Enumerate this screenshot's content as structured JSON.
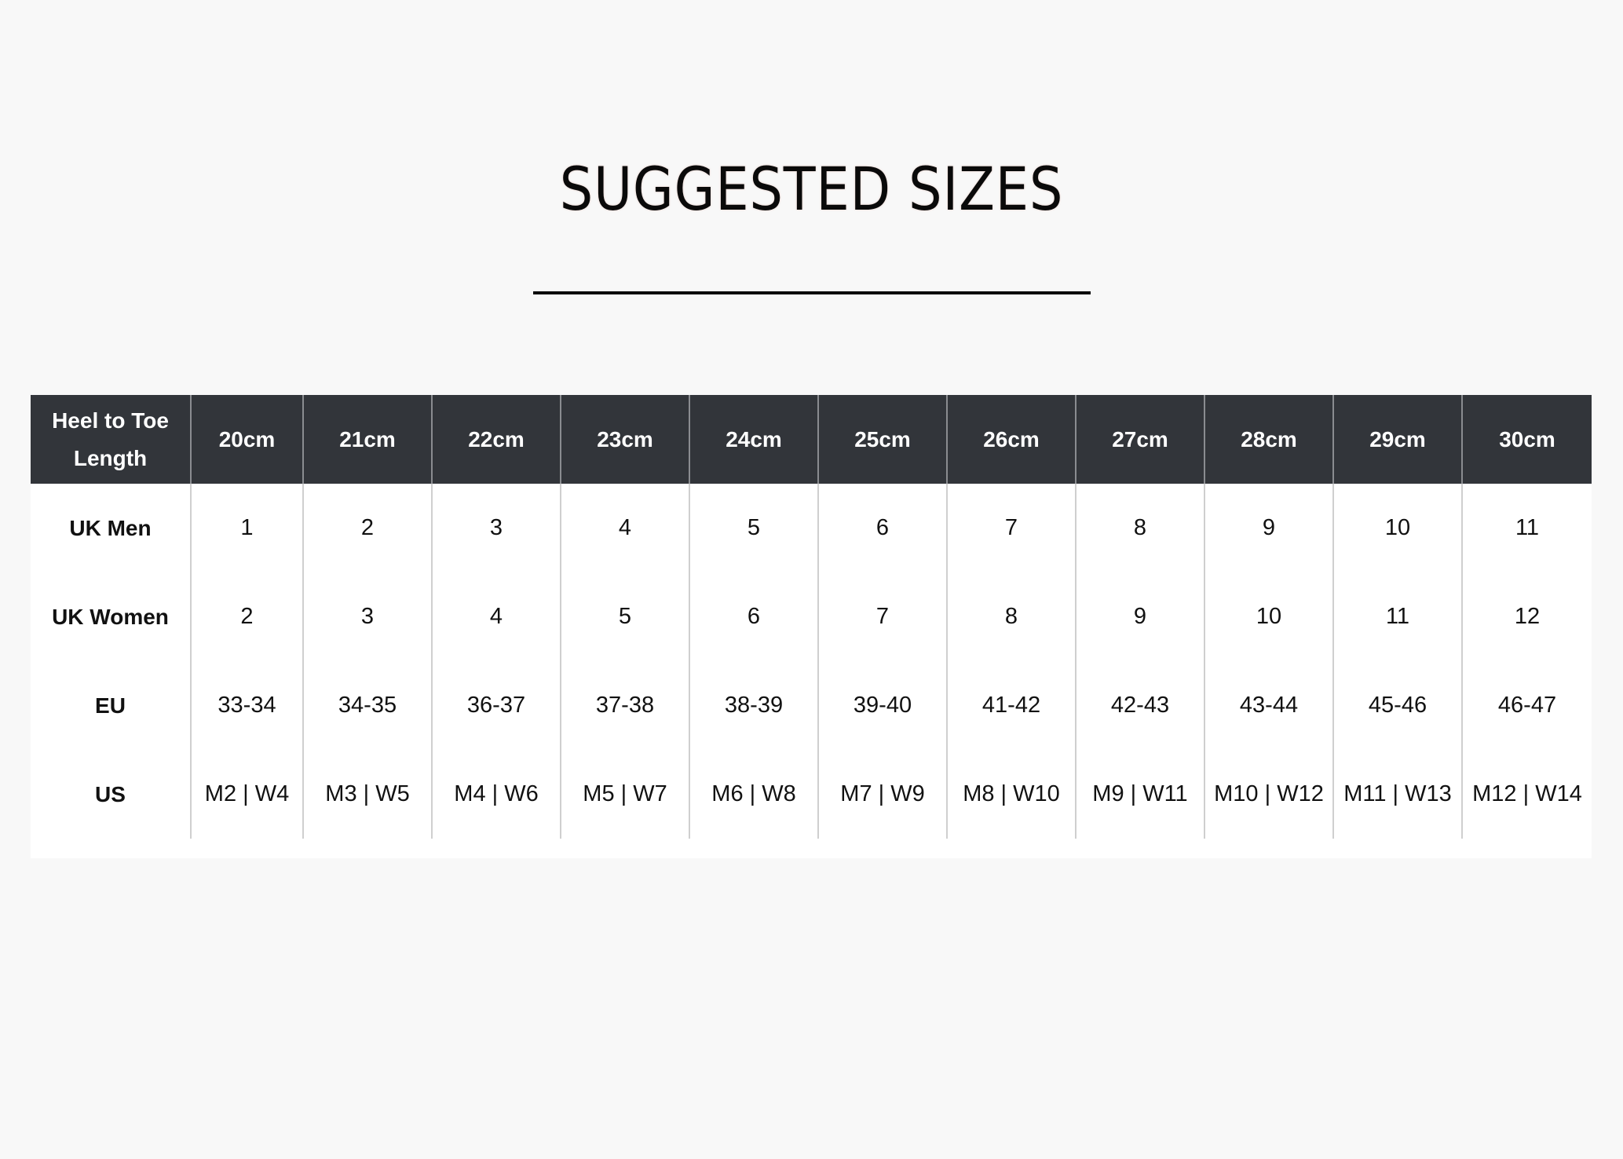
{
  "title": "SUGGESTED SIZES",
  "table": {
    "header_label": "Heel to Toe Length",
    "columns": [
      "20cm",
      "21cm",
      "22cm",
      "23cm",
      "24cm",
      "25cm",
      "26cm",
      "27cm",
      "28cm",
      "29cm",
      "30cm"
    ],
    "rows": [
      {
        "label": "UK Men",
        "values": [
          "1",
          "2",
          "3",
          "4",
          "5",
          "6",
          "7",
          "8",
          "9",
          "10",
          "11"
        ]
      },
      {
        "label": "UK Women",
        "values": [
          "2",
          "3",
          "4",
          "5",
          "6",
          "7",
          "8",
          "9",
          "10",
          "11",
          "12"
        ]
      },
      {
        "label": "EU",
        "values": [
          "33-34",
          "34-35",
          "36-37",
          "37-38",
          "38-39",
          "39-40",
          "41-42",
          "42-43",
          "43-44",
          "45-46",
          "46-47"
        ]
      },
      {
        "label": "US",
        "values": [
          "M2 | W4",
          "M3 | W5",
          "M4 | W6",
          "M5 | W7",
          "M6 | W8",
          "M7 | W9",
          "M8 | W10",
          "M9 | W11",
          "M10 | W12",
          "M11 | W13",
          "M12 | W14"
        ]
      }
    ]
  },
  "colors": {
    "header_bg": "#32353a",
    "background": "#f8f8f8"
  }
}
